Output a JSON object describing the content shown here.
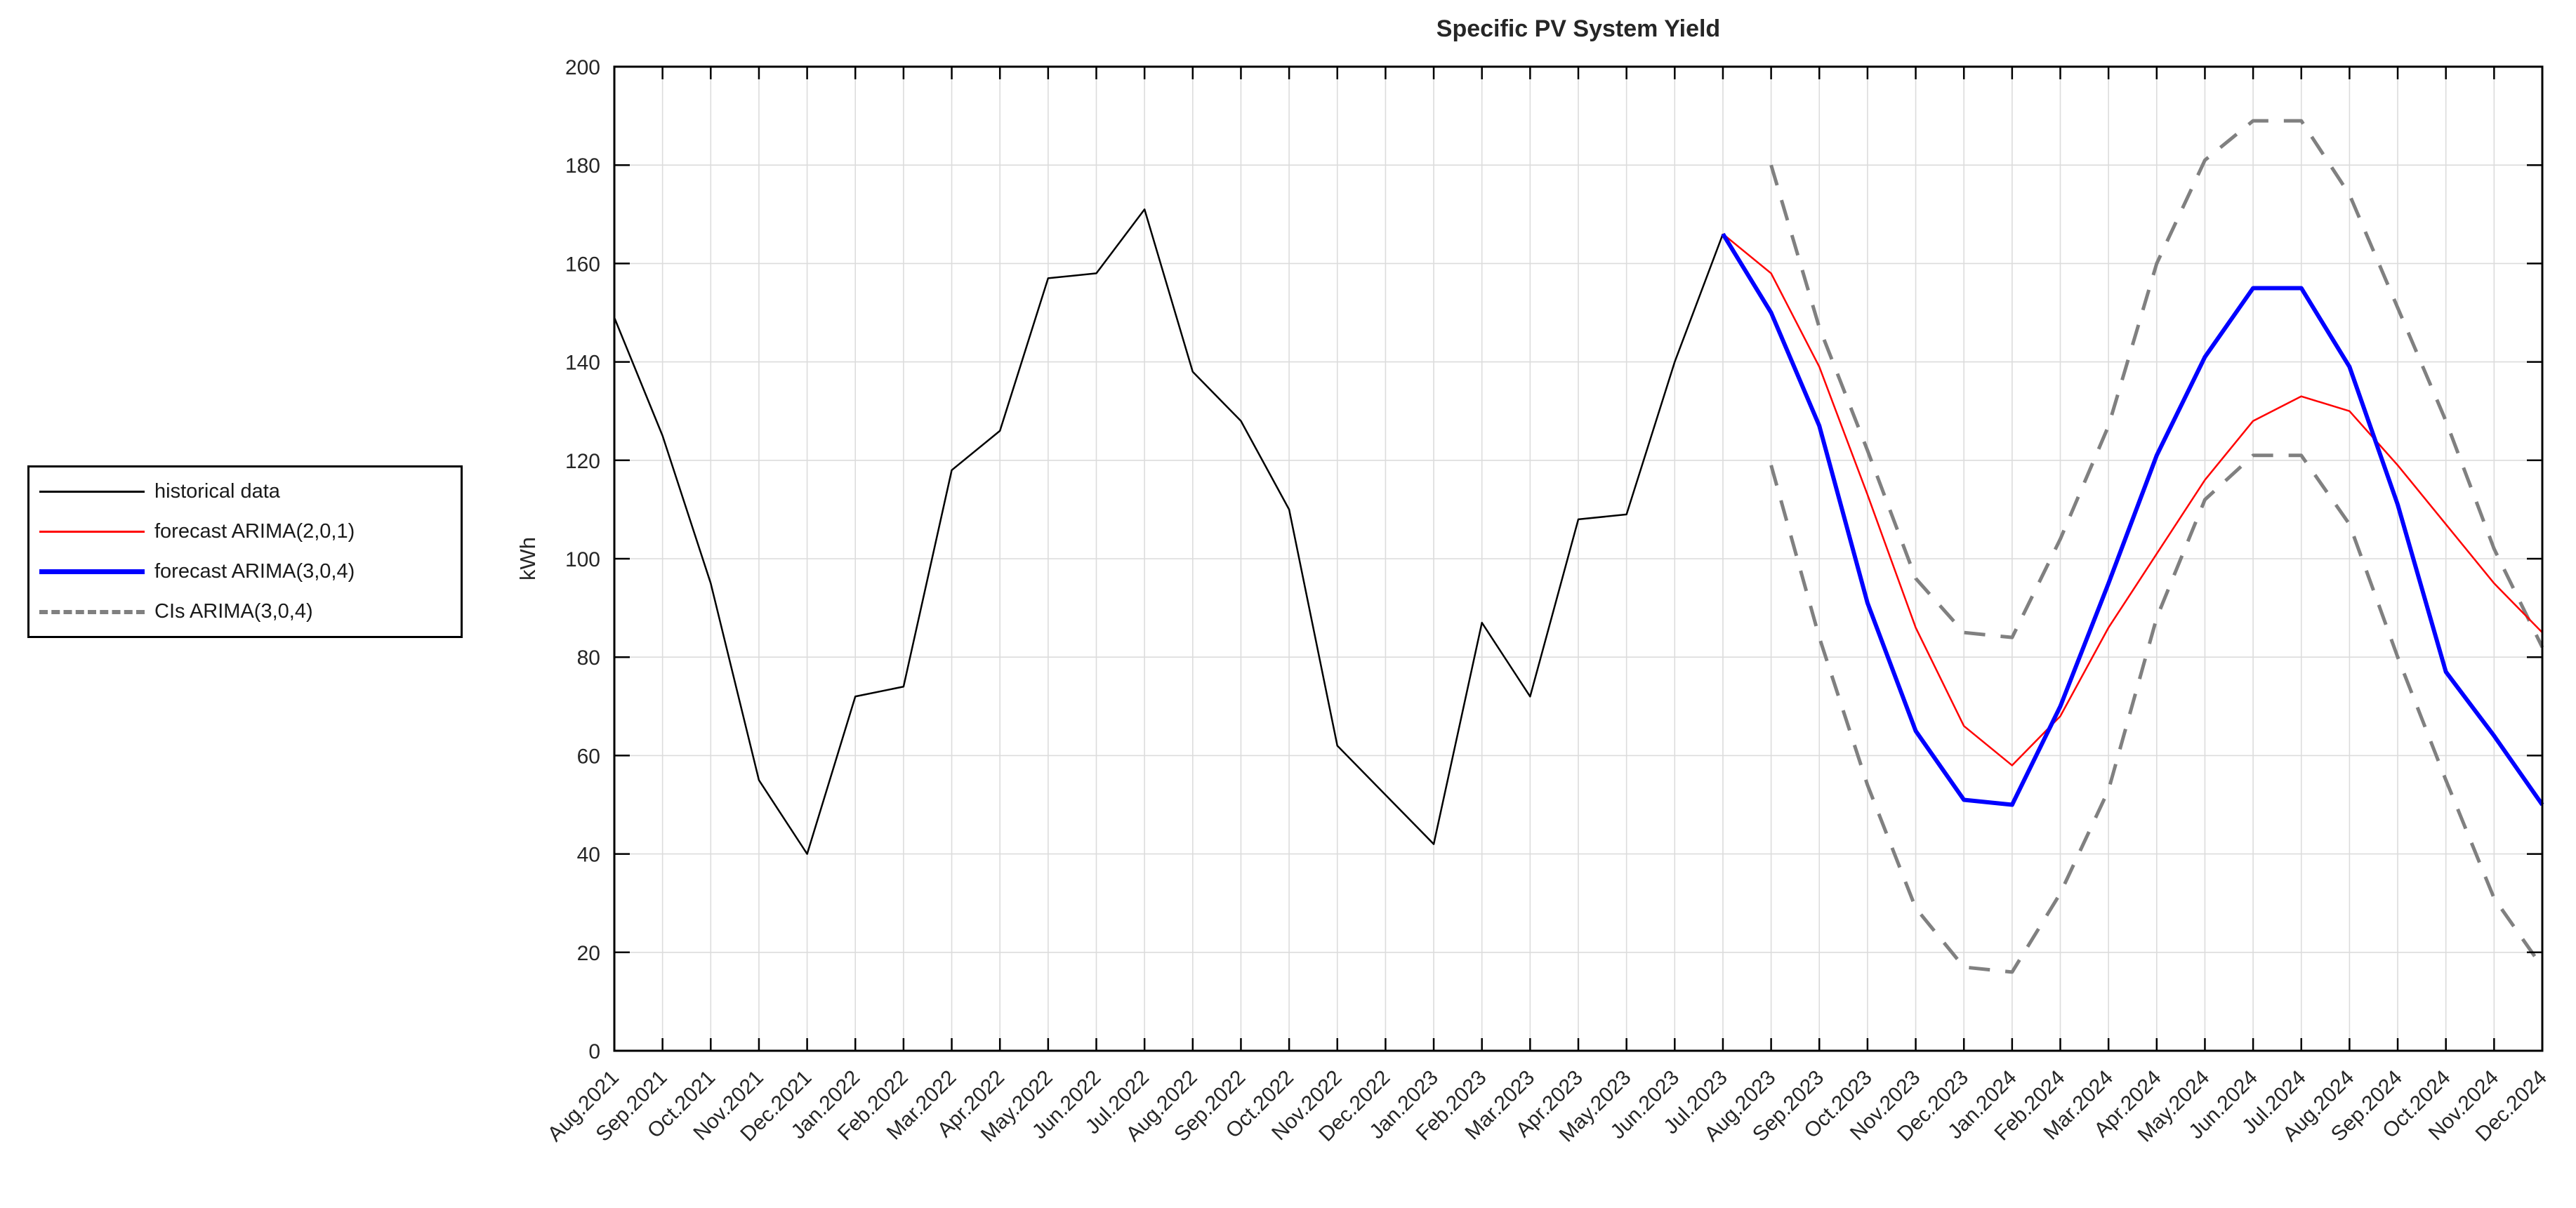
{
  "chart_data": {
    "type": "line",
    "title": "Specific PV System Yield",
    "ylabel": "kWh",
    "ylim": [
      0,
      200
    ],
    "ytick_step": 20,
    "grid": true,
    "legend_position": "outside-left",
    "x_labels": [
      "Aug.2021",
      "Sep.2021",
      "Oct.2021",
      "Nov.2021",
      "Dec.2021",
      "Jan.2022",
      "Feb.2022",
      "Mar.2022",
      "Apr.2022",
      "May.2022",
      "Jun.2022",
      "Jul.2022",
      "Aug.2022",
      "Sep.2022",
      "Oct.2022",
      "Nov.2022",
      "Dec.2022",
      "Jan.2023",
      "Feb.2023",
      "Mar.2023",
      "Apr.2023",
      "May.2023",
      "Jun.2023",
      "Jul.2023",
      "Aug.2023",
      "Sep.2023",
      "Oct.2023",
      "Nov.2023",
      "Dec.2023",
      "Jan.2024",
      "Feb.2024",
      "Mar.2024",
      "Apr.2024",
      "May.2024",
      "Jun.2024",
      "Jul.2024",
      "Aug.2024",
      "Sep.2024",
      "Oct.2024",
      "Nov.2024",
      "Dec.2024"
    ],
    "series": [
      {
        "name": "historical data",
        "color": "#000000",
        "width": 2.5,
        "dash": null,
        "start_index": 0,
        "values": [
          149,
          125,
          95,
          55,
          40,
          72,
          74,
          118,
          126,
          157,
          158,
          171,
          138,
          128,
          110,
          62,
          52,
          42,
          87,
          72,
          108,
          109,
          140,
          166
        ]
      },
      {
        "name": "forecast ARIMA(2,0,1)",
        "color": "#ff0000",
        "width": 2.5,
        "dash": null,
        "start_index": 23,
        "values": [
          166,
          158,
          139,
          113,
          86,
          66,
          58,
          68,
          86,
          101,
          116,
          128,
          133,
          130,
          119,
          107,
          95,
          85
        ]
      },
      {
        "name": "forecast ARIMA(3,0,4)",
        "color": "#0000ff",
        "width": 6,
        "dash": null,
        "start_index": 23,
        "values": [
          166,
          150,
          127,
          91,
          65,
          51,
          50,
          70,
          95,
          121,
          141,
          155,
          155,
          139,
          111,
          77,
          64,
          50
        ]
      },
      {
        "name": "CIs ARIMA(3,0,4) upper",
        "color": "#808080",
        "width": 5,
        "dash": "30 22",
        "start_index": 24,
        "values": [
          180,
          147,
          122,
          96,
          85,
          84,
          104,
          127,
          160,
          181,
          189,
          189,
          174,
          151,
          128,
          102,
          82
        ]
      },
      {
        "name": "CIs ARIMA(3,0,4) lower",
        "color": "#808080",
        "width": 5,
        "dash": "30 22",
        "start_index": 24,
        "values": [
          119,
          84,
          54,
          29,
          17,
          16,
          32,
          53,
          88,
          112,
          121,
          121,
          107,
          80,
          55,
          31,
          17
        ]
      }
    ],
    "legend": [
      {
        "label": "historical data",
        "color": "#000000",
        "width": 3,
        "dashed": false
      },
      {
        "label": "forecast ARIMA(2,0,1)",
        "color": "#ff0000",
        "width": 3,
        "dashed": false
      },
      {
        "label": "forecast ARIMA(3,0,4)",
        "color": "#0000ff",
        "width": 7,
        "dashed": false
      },
      {
        "label": "CIs ARIMA(3,0,4)",
        "color": "#808080",
        "width": 6,
        "dashed": true
      }
    ]
  }
}
